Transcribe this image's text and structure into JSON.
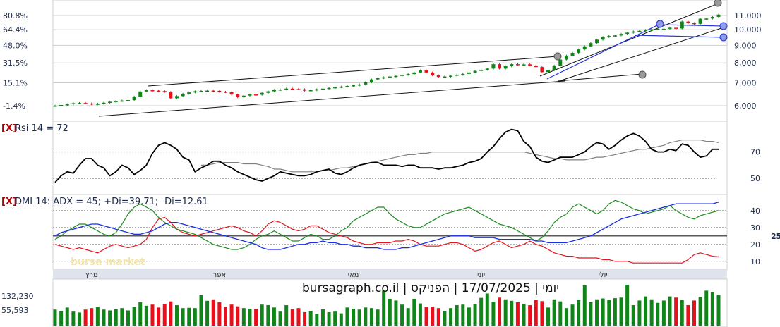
{
  "footer": {
    "caption": "יומי | 17/07/2025 | הפניקס | bursagraph.co.il"
  },
  "watermark": "bursa market",
  "colors": {
    "up": "#12851a",
    "down": "#e8101a",
    "rsi": "#000000",
    "rsi_ma": "#808080",
    "adx": "#1a2ee8",
    "plus_di": "#1d8a1d",
    "minus_di": "#e8101a",
    "trendline": "#111111",
    "channel": "#2233dd",
    "grid": "#cfcfcf",
    "close_x": "#b00000",
    "label": "#1c2a4a"
  },
  "chart_data": [
    {
      "id": "price",
      "type": "candlestick",
      "left_ticks": [
        "80.8%",
        "64.4%",
        "48.0%",
        "31.5%",
        "15.1%",
        "-1.4%"
      ],
      "right_ticks": [
        "11,000",
        "10,000",
        "9,000",
        "8,000",
        "7,000",
        "6,000"
      ],
      "grid": true,
      "months": [
        "מרץ",
        "אפר",
        "מאי",
        "יוני",
        "יולי"
      ],
      "close": [
        6000,
        6030,
        6060,
        6100,
        6110,
        6090,
        6060,
        6080,
        6120,
        6160,
        6190,
        6210,
        6230,
        6380,
        6600,
        6660,
        6640,
        6620,
        6580,
        6310,
        6400,
        6500,
        6560,
        6610,
        6630,
        6640,
        6630,
        6590,
        6570,
        6470,
        6350,
        6420,
        6470,
        6460,
        6540,
        6610,
        6670,
        6690,
        6730,
        6710,
        6700,
        6640,
        6660,
        6700,
        6730,
        6760,
        6790,
        6820,
        6850,
        6880,
        6920,
        7020,
        7160,
        7220,
        7260,
        7300,
        7330,
        7380,
        7420,
        7500,
        7610,
        7500,
        7360,
        7280,
        7300,
        7340,
        7390,
        7430,
        7500,
        7580,
        7640,
        7700,
        7930,
        7700,
        7820,
        7930,
        7900,
        7920,
        7860,
        7780,
        7520,
        7620,
        7850,
        8180,
        8400,
        8560,
        8760,
        8940,
        9140,
        9350,
        9520,
        9580,
        9620,
        9720,
        9800,
        9880,
        9920,
        9980,
        10030,
        10060,
        10060,
        10130,
        10080,
        10560,
        10450,
        10400,
        10760,
        10780,
        10900,
        11060
      ]
    },
    {
      "id": "rsi",
      "type": "line",
      "title": "Rsi 14 = 72",
      "close_label": "[X]",
      "right_ticks": [
        "70",
        "50"
      ],
      "levels": [
        70,
        50
      ],
      "series": [
        {
          "values": [
            47,
            52,
            55,
            54,
            60,
            65,
            65,
            60,
            58,
            52,
            55,
            60,
            58,
            53,
            56,
            60,
            69,
            75,
            77,
            75,
            72,
            66,
            64,
            55,
            58,
            60,
            63,
            63,
            60,
            58,
            55,
            53,
            51,
            49,
            48,
            50,
            52,
            55,
            54,
            53,
            52,
            52,
            53,
            55,
            56,
            57,
            54,
            53,
            55,
            58,
            60,
            61,
            62,
            62,
            60,
            60,
            60,
            59,
            60,
            60,
            58,
            58,
            58,
            57,
            58,
            58,
            59,
            60,
            62,
            63,
            65,
            70,
            74,
            80,
            85,
            87,
            86,
            78,
            74,
            66,
            63,
            62,
            64,
            66,
            66,
            66,
            68,
            70,
            74,
            77,
            76,
            72,
            75,
            79,
            82,
            84,
            82,
            78,
            72,
            70,
            70,
            72,
            71,
            76,
            75,
            70,
            66,
            67,
            72,
            72
          ]
        },
        {
          "values": [
            null,
            null,
            null,
            null,
            null,
            null,
            null,
            null,
            null,
            null,
            null,
            null,
            null,
            null,
            null,
            null,
            null,
            null,
            null,
            null,
            null,
            null,
            null,
            null,
            60,
            60,
            61,
            62,
            62,
            62,
            62,
            61,
            61,
            61,
            60,
            59,
            57,
            57,
            56,
            55,
            55,
            55,
            55,
            55,
            56,
            56,
            57,
            58,
            58,
            59,
            60,
            61,
            62,
            63,
            64,
            65,
            66,
            67,
            68,
            68,
            69,
            69,
            70,
            70,
            70,
            70,
            70,
            70,
            70,
            70,
            70,
            70,
            70,
            70,
            70,
            70,
            70,
            70,
            69,
            68,
            67,
            66,
            65,
            65,
            64,
            64,
            64,
            64,
            65,
            66,
            66,
            67,
            68,
            69,
            70,
            71,
            72,
            72,
            73,
            74,
            75,
            77,
            78,
            79,
            79,
            79,
            79,
            78,
            78,
            77
          ]
        }
      ]
    },
    {
      "id": "dmi",
      "type": "line",
      "title": "DMI 14: ADX = 45; +Di=39.71; -Di=12.61",
      "close_label": "[X]",
      "right_ticks": [
        "40",
        "30",
        "25",
        "20",
        "10"
      ],
      "levels": [
        40,
        30,
        25,
        20,
        10
      ],
      "series": [
        {
          "values": [
            25,
            27,
            28,
            29,
            30,
            31,
            32,
            32,
            31,
            30,
            29,
            28,
            27,
            26,
            26,
            27,
            28,
            30,
            32,
            33,
            33,
            32,
            31,
            30,
            29,
            28,
            27,
            26,
            25,
            24,
            23,
            22,
            21,
            20,
            18,
            17,
            17,
            17,
            18,
            19,
            20,
            20,
            21,
            21,
            22,
            21,
            21,
            20,
            20,
            19,
            19,
            18,
            18,
            18,
            17,
            17,
            17,
            18,
            18,
            19,
            20,
            21,
            22,
            23,
            24,
            25,
            25,
            25,
            25,
            24,
            24,
            24,
            24,
            23,
            23,
            23,
            23,
            23,
            23,
            22,
            22,
            21,
            21,
            21,
            21,
            22,
            23,
            24,
            25,
            27,
            29,
            31,
            33,
            35,
            36,
            37,
            38,
            39,
            40,
            41,
            42,
            43,
            44,
            44,
            44,
            44,
            44,
            44,
            44,
            45
          ]
        },
        {
          "values": [
            23,
            25,
            28,
            30,
            32,
            32,
            30,
            28,
            26,
            25,
            27,
            32,
            38,
            42,
            44,
            42,
            40,
            36,
            33,
            31,
            29,
            28,
            27,
            26,
            24,
            22,
            20,
            19,
            18,
            17,
            17,
            18,
            20,
            23,
            25,
            26,
            28,
            26,
            24,
            22,
            22,
            24,
            26,
            25,
            23,
            23,
            25,
            28,
            30,
            34,
            36,
            38,
            40,
            42,
            42,
            38,
            35,
            33,
            31,
            30,
            30,
            32,
            34,
            36,
            38,
            39,
            40,
            41,
            42,
            40,
            38,
            36,
            34,
            32,
            31,
            30,
            28,
            26,
            24,
            22,
            24,
            28,
            33,
            36,
            38,
            42,
            44,
            42,
            40,
            38,
            40,
            44,
            46,
            45,
            43,
            41,
            40,
            38,
            39,
            40,
            41,
            43,
            40,
            38,
            36,
            35,
            37,
            38,
            39,
            40
          ]
        },
        {
          "values": [
            20,
            19,
            18,
            17,
            18,
            17,
            16,
            15,
            17,
            19,
            20,
            19,
            18,
            19,
            20,
            23,
            30,
            35,
            36,
            33,
            29,
            27,
            26,
            25,
            26,
            27,
            28,
            29,
            30,
            31,
            30,
            28,
            27,
            25,
            28,
            32,
            34,
            33,
            31,
            29,
            28,
            29,
            31,
            31,
            29,
            27,
            26,
            25,
            24,
            22,
            21,
            20,
            20,
            21,
            21,
            21,
            22,
            22,
            23,
            22,
            20,
            19,
            19,
            19,
            20,
            21,
            21,
            20,
            18,
            16,
            17,
            19,
            21,
            22,
            20,
            18,
            19,
            20,
            22,
            20,
            19,
            17,
            15,
            14,
            13,
            13,
            12,
            12,
            12,
            12,
            11,
            11,
            10,
            10,
            10,
            9,
            9,
            9,
            9,
            9,
            9,
            9,
            9,
            9,
            11,
            14,
            15,
            14,
            13,
            12.61
          ]
        }
      ]
    },
    {
      "id": "volume",
      "type": "bar",
      "left_ticks": [
        "132,230",
        "55,593"
      ],
      "values": [
        55000,
        50000,
        62000,
        48000,
        45000,
        55000,
        60000,
        65000,
        55000,
        52000,
        56000,
        60000,
        52000,
        64000,
        80000,
        68000,
        72000,
        62000,
        75000,
        83000,
        70000,
        60000,
        61000,
        60000,
        104000,
        85000,
        90000,
        80000,
        65000,
        72000,
        66000,
        60000,
        58000,
        57000,
        72000,
        70000,
        62000,
        48000,
        70000,
        56000,
        60000,
        46000,
        50000,
        40000,
        56000,
        46000,
        48000,
        42000,
        62000,
        58000,
        55000,
        62000,
        60000,
        55000,
        120000,
        92000,
        86000,
        72000,
        60000,
        92000,
        76000,
        65000,
        65000,
        60000,
        50000,
        60000,
        70000,
        72000,
        62000,
        75000,
        95000,
        110000,
        82000,
        96000,
        90000,
        85000,
        80000,
        75000,
        70000,
        88000,
        84000,
        62000,
        90000,
        83000,
        60000,
        72000,
        87000,
        138000,
        80000,
        90000,
        93000,
        88000,
        94000,
        96000,
        140000,
        70000,
        86000,
        100000,
        90000,
        78000,
        86000,
        100000,
        96000,
        88000,
        70000,
        86000,
        99000,
        120000,
        115000,
        105000
      ]
    }
  ]
}
